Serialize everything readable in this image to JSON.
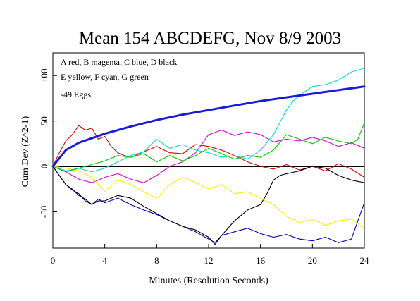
{
  "chart_data": {
    "type": "line",
    "title": "Mean 154 ABCDEFG, Nov 8/9 2003",
    "xlabel": "Minutes (Resolution Seconds)",
    "ylabel": "Cum Dev (Z^2-1)",
    "xlim": [
      0,
      24
    ],
    "ylim": [
      -90,
      125
    ],
    "x_ticks": [
      0,
      4,
      8,
      12,
      16,
      20,
      24
    ],
    "y_ticks": [
      -50,
      0,
      50,
      100
    ],
    "annotations": [
      "A red, B magenta, C blue, D black",
      "E yellow, F cyan, G green",
      "-49 Eggs"
    ],
    "grid": false,
    "baseline": 0,
    "envelope": {
      "color": "#1a1add",
      "x": [
        0,
        1,
        2,
        3,
        4,
        6,
        8,
        10,
        12,
        14,
        16,
        18,
        20,
        22,
        24
      ],
      "y": [
        0,
        18,
        26,
        31,
        36,
        44,
        51,
        57,
        62,
        67,
        72,
        76,
        80,
        84,
        88
      ]
    },
    "series": [
      {
        "color": "#dd0000",
        "x": [
          0,
          0.5,
          1,
          1.5,
          2,
          2.5,
          3,
          3.5,
          4,
          4.5,
          5,
          5.5,
          6,
          7,
          8,
          9,
          10,
          11,
          12,
          13,
          14,
          15,
          16,
          17,
          18,
          19,
          20,
          21,
          22,
          23,
          24
        ],
        "y": [
          0,
          15,
          28,
          35,
          45,
          40,
          42,
          30,
          33,
          22,
          15,
          12,
          10,
          16,
          22,
          15,
          14,
          24,
          22,
          18,
          12,
          5,
          0,
          -3,
          2,
          -4,
          0,
          -5,
          3,
          -3,
          -12
        ]
      },
      {
        "color": "#dd00dd",
        "x": [
          0,
          1,
          2,
          3,
          4,
          5,
          6,
          7,
          8,
          9,
          10,
          11,
          12,
          13,
          14,
          15,
          16,
          17,
          18,
          19,
          20,
          21,
          22,
          23,
          24
        ],
        "y": [
          0,
          -6,
          -14,
          -18,
          -12,
          -8,
          -14,
          -18,
          -10,
          0,
          5,
          15,
          35,
          40,
          34,
          38,
          35,
          27,
          30,
          28,
          32,
          28,
          22,
          26,
          20
        ]
      },
      {
        "color": "#0000bb",
        "x": [
          0,
          0.5,
          1,
          1.5,
          2,
          2.5,
          3,
          3.5,
          4,
          5,
          6,
          7,
          8,
          9,
          10,
          11,
          12,
          12.5,
          13,
          14,
          15,
          16,
          17,
          18,
          19,
          20,
          21,
          22,
          23,
          23.5,
          24
        ],
        "y": [
          0,
          -10,
          -20,
          -26,
          -30,
          -38,
          -42,
          -36,
          -40,
          -35,
          -42,
          -48,
          -53,
          -60,
          -66,
          -72,
          -80,
          -84,
          -76,
          -72,
          -68,
          -74,
          -78,
          -75,
          -80,
          -82,
          -78,
          -84,
          -80,
          -60,
          -40
        ]
      },
      {
        "color": "#000000",
        "x": [
          0,
          0.5,
          1,
          1.5,
          2,
          2.5,
          3,
          3.5,
          4,
          5,
          6,
          7,
          8,
          9,
          10,
          11,
          12,
          12.5,
          13,
          14,
          15,
          16,
          16.5,
          17,
          17.5,
          18,
          19,
          20,
          21,
          22,
          23,
          24
        ],
        "y": [
          0,
          -10,
          -20,
          -25,
          -32,
          -36,
          -42,
          -38,
          -38,
          -32,
          -35,
          -44,
          -52,
          -60,
          -66,
          -70,
          -78,
          -86,
          -76,
          -60,
          -48,
          -42,
          -30,
          -15,
          -10,
          -8,
          -5,
          0,
          -2,
          -10,
          -15,
          -18
        ]
      },
      {
        "color": "#ffee00",
        "x": [
          0,
          1,
          2,
          3,
          4,
          5,
          6,
          7,
          8,
          9,
          10,
          11,
          12,
          13,
          14,
          15,
          16,
          17,
          18,
          19,
          20,
          21,
          22,
          23,
          24
        ],
        "y": [
          0,
          -2,
          -5,
          -12,
          -28,
          -15,
          -20,
          -28,
          -35,
          -20,
          -12,
          -18,
          -25,
          -20,
          -30,
          -28,
          -35,
          -42,
          -55,
          -62,
          -58,
          -65,
          -60,
          -58,
          -68
        ]
      },
      {
        "color": "#00dddd",
        "x": [
          0,
          1,
          2,
          3,
          4,
          5,
          6,
          7,
          8,
          9,
          10,
          11,
          12,
          13,
          14,
          15,
          16,
          17,
          18,
          18.5,
          19,
          20,
          21,
          22,
          23,
          24
        ],
        "y": [
          0,
          -5,
          -2,
          -6,
          -2,
          5,
          12,
          16,
          30,
          20,
          24,
          18,
          15,
          10,
          12,
          8,
          18,
          35,
          62,
          72,
          78,
          88,
          90,
          95,
          104,
          108
        ]
      },
      {
        "color": "#00cc00",
        "x": [
          0,
          1,
          2,
          3,
          4,
          5,
          6,
          7,
          8,
          9,
          10,
          11,
          12,
          13,
          14,
          15,
          16,
          17,
          18,
          19,
          20,
          21,
          22,
          23,
          23.5,
          24
        ],
        "y": [
          0,
          -6,
          -2,
          2,
          6,
          12,
          10,
          14,
          5,
          12,
          6,
          12,
          20,
          14,
          8,
          12,
          10,
          18,
          35,
          30,
          25,
          32,
          28,
          25,
          30,
          48
        ]
      }
    ]
  }
}
